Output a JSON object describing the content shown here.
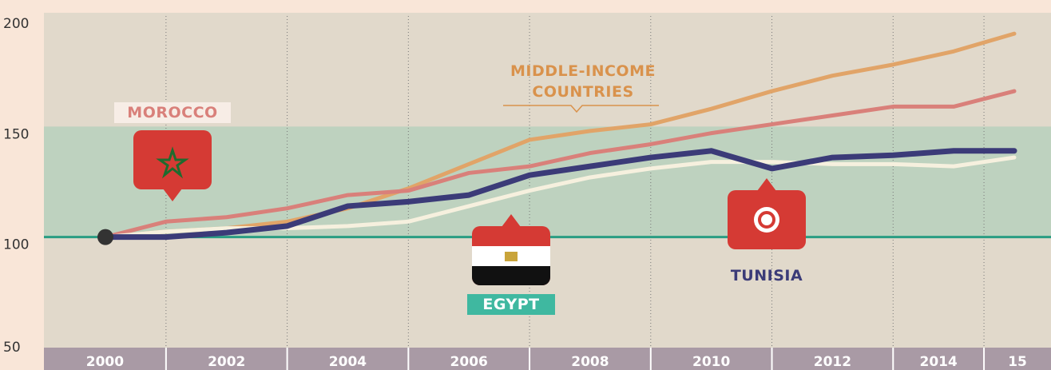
{
  "chart_data": {
    "type": "line",
    "x": [
      2000,
      2001,
      2002,
      2003,
      2004,
      2005,
      2006,
      2007,
      2008,
      2009,
      2010,
      2011,
      2012,
      2013,
      2014,
      2015
    ],
    "series": [
      {
        "name": "MIDDLE-INCOME COUNTRIES",
        "color": "#e1a468",
        "values": [
          100,
          102.5,
          104,
          107,
          113,
          122,
          133,
          144,
          148,
          151,
          158,
          166,
          173,
          178,
          184,
          192
        ]
      },
      {
        "name": "MOROCCO",
        "color": "#d9807a",
        "values": [
          100,
          107,
          109,
          113,
          119,
          121,
          129,
          132,
          138,
          142,
          147,
          151,
          155,
          159,
          159,
          166
        ]
      },
      {
        "name": "EGYPT",
        "color": "#3b3b78",
        "values": [
          100,
          100,
          102,
          105,
          114,
          116,
          119,
          128,
          132,
          136,
          139,
          131,
          136,
          137,
          139,
          139
        ]
      },
      {
        "name": "TUNISIA",
        "color": "#f6f0de",
        "values": [
          100,
          102.5,
          104,
          104,
          105,
          107,
          114,
          121,
          127,
          131,
          134,
          134,
          133,
          133,
          132,
          136
        ]
      }
    ],
    "xlim": [
      2000,
      2015
    ],
    "xticks": [
      2000,
      2002,
      2004,
      2006,
      2008,
      2010,
      2012,
      2014,
      {
        "value": 2015,
        "label": "15"
      }
    ],
    "ylim": [
      50,
      200
    ],
    "yticks": [
      50,
      100,
      150,
      200
    ],
    "band": [
      100,
      150
    ],
    "baseline": 100
  }
}
